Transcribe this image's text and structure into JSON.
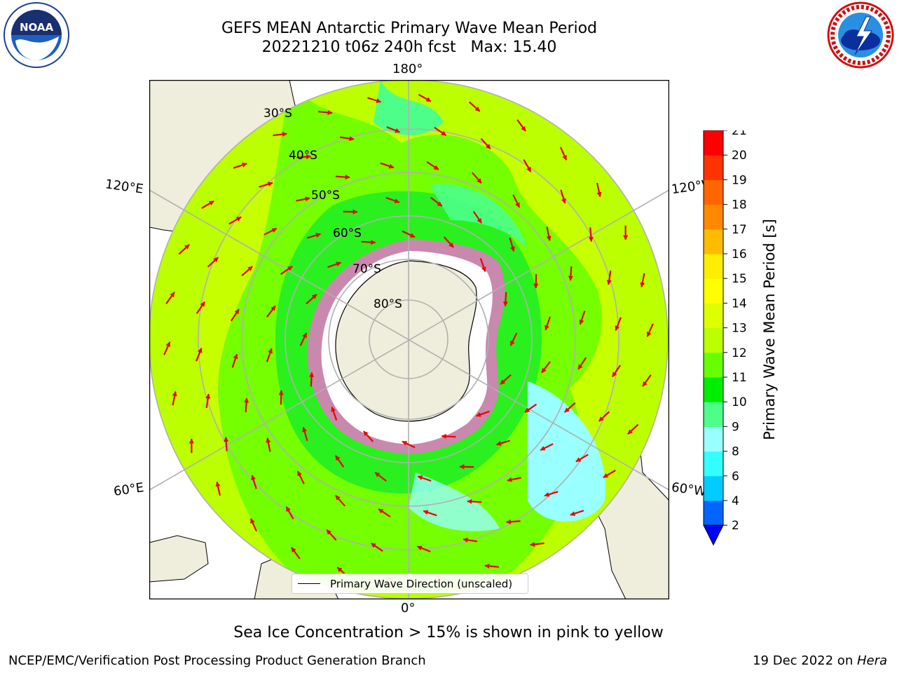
{
  "title": {
    "line1": "GEFS MEAN Antarctic Primary Wave Mean Period",
    "line2": "20221210 t06z 240h fcst   Max: 15.40"
  },
  "logos": {
    "left": {
      "icon": "noaa-logo",
      "text": "NOAA"
    },
    "right": {
      "icon": "nws-logo"
    }
  },
  "map": {
    "projection": "south-polar-stereographic",
    "longitude_labels": {
      "top": "180°",
      "left_upper": "120°E",
      "right_upper": "120°W",
      "left_lower": "60°E",
      "right_lower": "60°W",
      "bottom": "0°"
    },
    "latitude_labels": [
      "30°S",
      "40°S",
      "50°S",
      "60°S",
      "70°S",
      "80°S"
    ],
    "field_colors": {
      "land": "#efeedc",
      "ice": "#ffffff",
      "coast": "#000000",
      "grid": "#b0b0b0",
      "arrows": "#ee0000"
    },
    "legend_label": "Primary Wave Direction (unscaled)"
  },
  "colorbar": {
    "label": "Primary Wave Mean Period [s]",
    "ticks": [
      "2",
      "4",
      "6",
      "8",
      "9",
      "10",
      "11",
      "12",
      "13",
      "14",
      "15",
      "16",
      "17",
      "18",
      "19",
      "20",
      "21"
    ],
    "colors": [
      "#0066ff",
      "#00ccff",
      "#33ffff",
      "#99ffff",
      "#4dff88",
      "#00ee00",
      "#66ff00",
      "#bbff00",
      "#ddff00",
      "#ffff00",
      "#ffee00",
      "#ffbb00",
      "#ff8800",
      "#ff6600",
      "#ff3300",
      "#ff0000"
    ],
    "under_color": "#0000ff"
  },
  "notes": {
    "sea_ice": "Sea Ice Concentration > 15% is shown in pink to yellow"
  },
  "footer": {
    "left": "NCEP/EMC/Verification Post Processing Product Generation Branch",
    "right_prefix": "19 Dec 2022 on ",
    "right_machine": "Hera"
  }
}
